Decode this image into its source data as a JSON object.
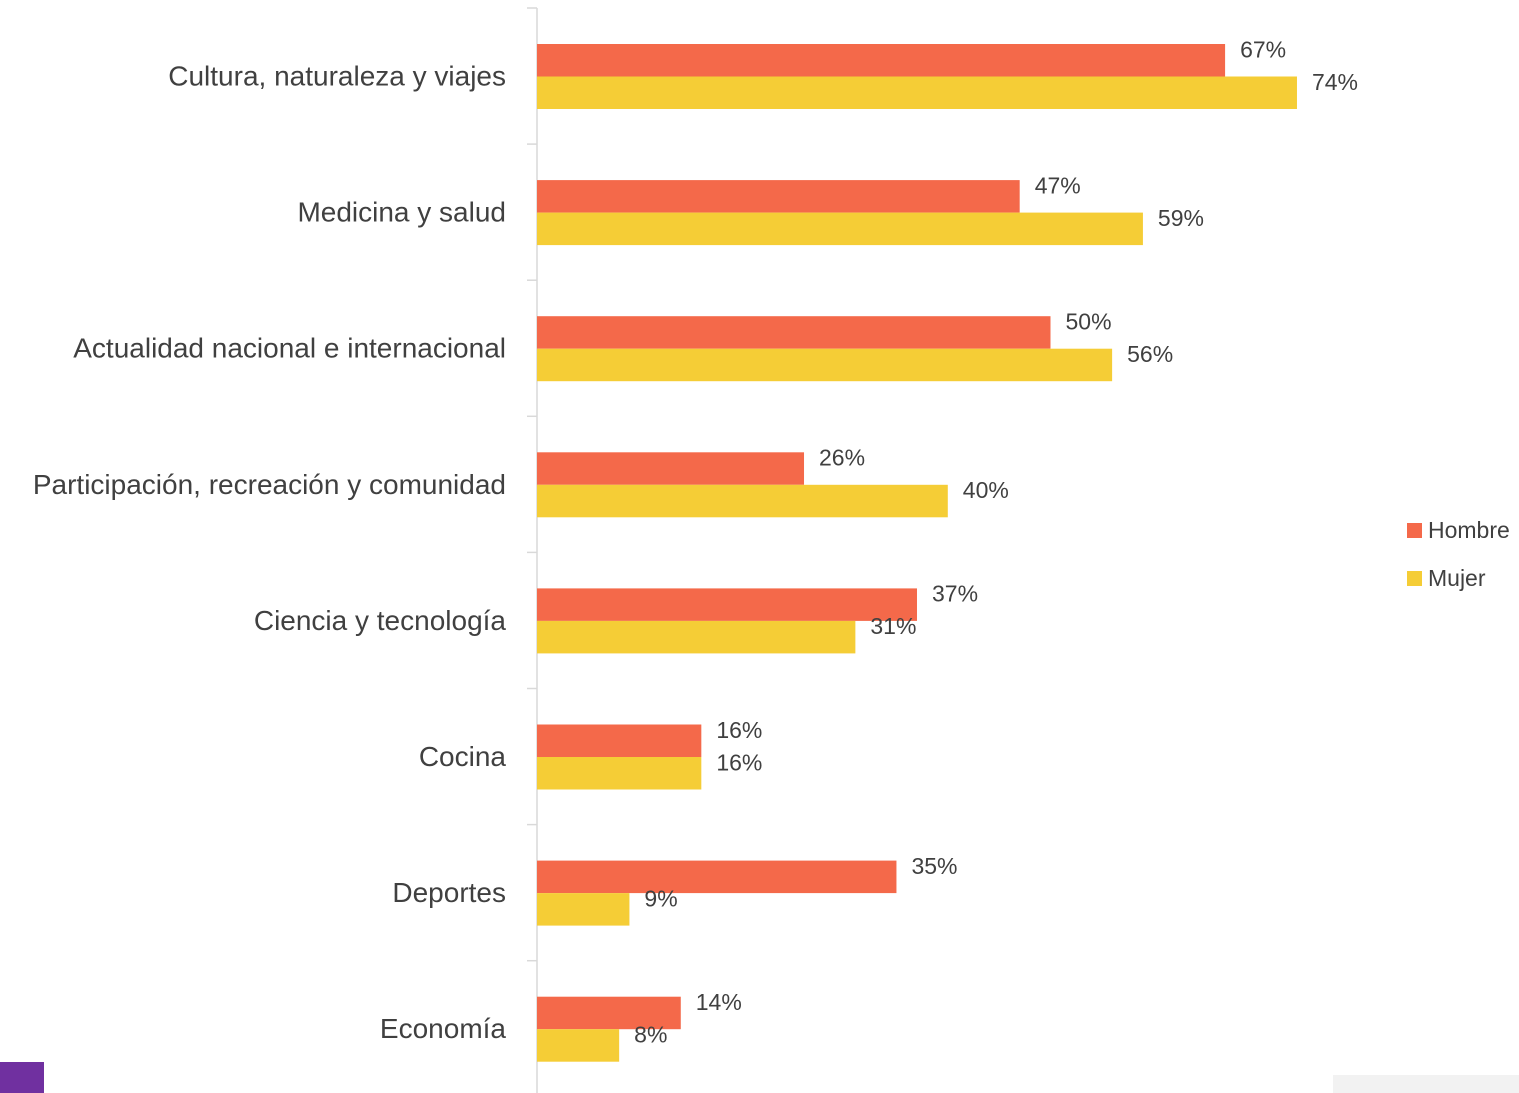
{
  "chart_data": {
    "type": "bar",
    "orientation": "horizontal",
    "categories": [
      "Cultura, naturaleza y viajes",
      "Medicina y salud",
      "Actualidad nacional e internacional",
      "Participación, recreación y comunidad",
      "Ciencia y tecnología",
      "Cocina",
      "Deportes",
      "Economía"
    ],
    "series": [
      {
        "name": "Hombre",
        "color": "#f4694a",
        "values": [
          67,
          47,
          50,
          26,
          37,
          16,
          35,
          14
        ],
        "labels": [
          "67%",
          "47%",
          "50%",
          "26%",
          "37%",
          "16%",
          "35%",
          "14%"
        ]
      },
      {
        "name": "Mujer",
        "color": "#f5cd36",
        "values": [
          74,
          59,
          56,
          40,
          31,
          16,
          9,
          8
        ],
        "labels": [
          "74%",
          "59%",
          "56%",
          "40%",
          "31%",
          "16%",
          "9%",
          "8%"
        ]
      }
    ],
    "value_unit": "%",
    "xlim": [
      0,
      100
    ],
    "grid": false,
    "legend_position": "right",
    "title": "",
    "xlabel": "",
    "ylabel": ""
  },
  "colors": {
    "axis": "#d9d9d9",
    "text": "#404040",
    "corner_block": "#7030a0"
  }
}
